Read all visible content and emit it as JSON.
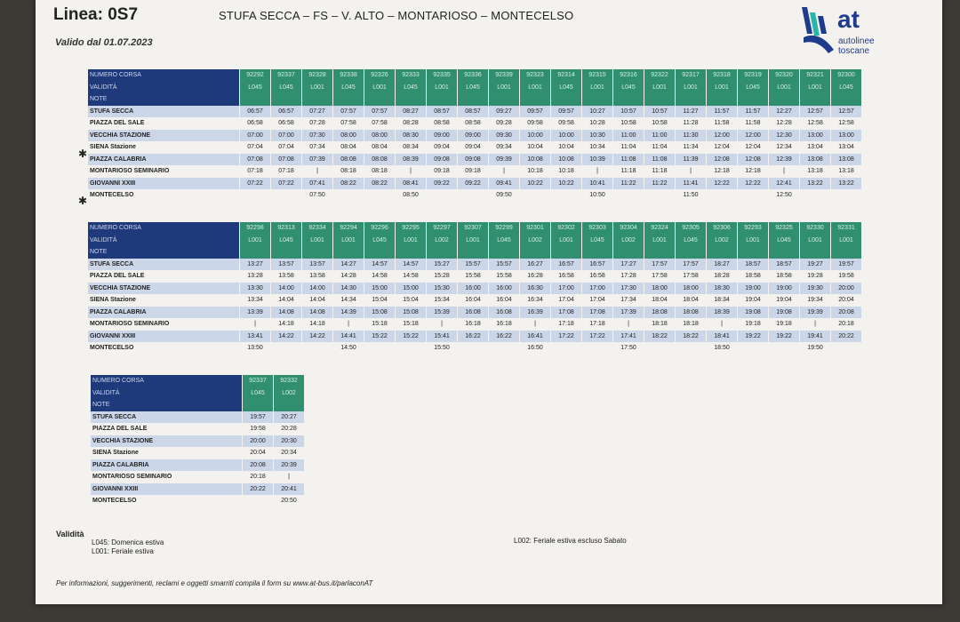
{
  "header": {
    "line_title": "Linea: 0S7",
    "route": "STUFA SECCA – FS – V. ALTO – MONTARIOSO – MONTECELSO",
    "valid_from": "Valido dal 01.07.2023"
  },
  "logo": {
    "brand": "at",
    "sub1": "autolinee",
    "sub2": "toscane"
  },
  "labels": {
    "corsa": "NUMERO CORSA",
    "validita": "VALIDITÀ",
    "note": "NOTE"
  },
  "stops": [
    "STUFA SECCA",
    "PIAZZA DEL SALE",
    "VECCHIA STAZIONE",
    "SIENA Stazione",
    "PIAZZA CALABRIA",
    "MONTARIOSO SEMINARIO",
    "GIOVANNI XXIII",
    "MONTECELSO"
  ],
  "table1": {
    "corse": [
      "92292",
      "92337",
      "92328",
      "92338",
      "92326",
      "92333",
      "92335",
      "92336",
      "92339",
      "92323",
      "92314",
      "92315",
      "92316",
      "92322",
      "92317",
      "92318",
      "92319",
      "92320",
      "92321",
      "92300"
    ],
    "validita": [
      "L045",
      "L045",
      "L001",
      "L045",
      "L001",
      "L045",
      "L001",
      "L045",
      "L001",
      "L001",
      "L045",
      "L001",
      "L045",
      "L001",
      "L001",
      "L001",
      "L045",
      "L001",
      "L001",
      "L045"
    ],
    "times": [
      [
        "06:57",
        "06:57",
        "07:27",
        "07:57",
        "07:57",
        "08:27",
        "08:57",
        "08:57",
        "09:27",
        "09:57",
        "09:57",
        "10:27",
        "10:57",
        "10:57",
        "11:27",
        "11:57",
        "11:57",
        "12:27",
        "12:57",
        "12:57"
      ],
      [
        "06:58",
        "06:58",
        "07:28",
        "07:58",
        "07:58",
        "08:28",
        "08:58",
        "08:58",
        "09:28",
        "09:58",
        "09:58",
        "10:28",
        "10:58",
        "10:58",
        "11:28",
        "11:58",
        "11:58",
        "12:28",
        "12:58",
        "12:58"
      ],
      [
        "07:00",
        "07:00",
        "07:30",
        "08:00",
        "08:00",
        "08:30",
        "09:00",
        "09:00",
        "09:30",
        "10:00",
        "10:00",
        "10:30",
        "11:00",
        "11:00",
        "11:30",
        "12:00",
        "12:00",
        "12:30",
        "13:00",
        "13:00"
      ],
      [
        "07:04",
        "07:04",
        "07:34",
        "08:04",
        "08:04",
        "08:34",
        "09:04",
        "09:04",
        "09:34",
        "10:04",
        "10:04",
        "10:34",
        "11:04",
        "11:04",
        "11:34",
        "12:04",
        "12:04",
        "12:34",
        "13:04",
        "13:04"
      ],
      [
        "07:08",
        "07:08",
        "07:39",
        "08:08",
        "08:08",
        "08:39",
        "09:08",
        "09:08",
        "09:39",
        "10:08",
        "10:08",
        "10:39",
        "11:08",
        "11:08",
        "11:39",
        "12:08",
        "12:08",
        "12:39",
        "13:08",
        "13:08"
      ],
      [
        "07:18",
        "07:18",
        "|",
        "08:18",
        "08:18",
        "|",
        "09:18",
        "09:18",
        "|",
        "10:18",
        "10:18",
        "|",
        "11:18",
        "11:18",
        "|",
        "12:18",
        "12:18",
        "|",
        "13:18",
        "13:18"
      ],
      [
        "07:22",
        "07:22",
        "07:41",
        "08:22",
        "08:22",
        "08:41",
        "09:22",
        "09:22",
        "09:41",
        "10:22",
        "10:22",
        "10:41",
        "11:22",
        "11:22",
        "11:41",
        "12:22",
        "12:22",
        "12:41",
        "13:22",
        "13:22"
      ],
      [
        "",
        "",
        "07:50",
        "",
        "",
        "08:50",
        "",
        "",
        "09:50",
        "",
        "",
        "10:50",
        "",
        "",
        "11:50",
        "",
        "",
        "12:50",
        "",
        ""
      ]
    ]
  },
  "table2": {
    "corse": [
      "92298",
      "92313",
      "92334",
      "92294",
      "92296",
      "92295",
      "92297",
      "92307",
      "92299",
      "92301",
      "92302",
      "92303",
      "92304",
      "92324",
      "92305",
      "92306",
      "92293",
      "92325",
      "92330",
      "92331"
    ],
    "validita": [
      "L001",
      "L045",
      "L001",
      "L001",
      "L045",
      "L001",
      "L002",
      "L001",
      "L045",
      "L002",
      "L001",
      "L045",
      "L002",
      "L001",
      "L045",
      "L002",
      "L001",
      "L045",
      "L001",
      "L001"
    ],
    "times": [
      [
        "13:27",
        "13:57",
        "13:57",
        "14:27",
        "14:57",
        "14:57",
        "15:27",
        "15:57",
        "15:57",
        "16:27",
        "16:57",
        "16:57",
        "17:27",
        "17:57",
        "17:57",
        "18:27",
        "18:57",
        "18:57",
        "19:27",
        "19:57"
      ],
      [
        "13:28",
        "13:58",
        "13:58",
        "14:28",
        "14:58",
        "14:58",
        "15:28",
        "15:58",
        "15:58",
        "16:28",
        "16:58",
        "16:58",
        "17:28",
        "17:58",
        "17:58",
        "18:28",
        "18:58",
        "18:58",
        "19:28",
        "19:58"
      ],
      [
        "13:30",
        "14:00",
        "14:00",
        "14:30",
        "15:00",
        "15:00",
        "15:30",
        "16:00",
        "16:00",
        "16:30",
        "17:00",
        "17:00",
        "17:30",
        "18:00",
        "18:00",
        "18:30",
        "19:00",
        "19:00",
        "19:30",
        "20:00"
      ],
      [
        "13:34",
        "14:04",
        "14:04",
        "14:34",
        "15:04",
        "15:04",
        "15:34",
        "16:04",
        "16:04",
        "16:34",
        "17:04",
        "17:04",
        "17:34",
        "18:04",
        "18:04",
        "18:34",
        "19:04",
        "19:04",
        "19:34",
        "20:04"
      ],
      [
        "13:39",
        "14:08",
        "14:08",
        "14:39",
        "15:08",
        "15:08",
        "15:39",
        "16:08",
        "16:08",
        "16:39",
        "17:08",
        "17:08",
        "17:39",
        "18:08",
        "18:08",
        "18:39",
        "19:08",
        "19:08",
        "19:39",
        "20:08"
      ],
      [
        "|",
        "14:18",
        "14:18",
        "|",
        "15:18",
        "15:18",
        "|",
        "16:18",
        "16:18",
        "|",
        "17:18",
        "17:18",
        "|",
        "18:18",
        "18:18",
        "|",
        "19:18",
        "19:18",
        "|",
        "20:18"
      ],
      [
        "13:41",
        "14:22",
        "14:22",
        "14:41",
        "15:22",
        "15:22",
        "15:41",
        "16:22",
        "16:22",
        "16:41",
        "17:22",
        "17:22",
        "17:41",
        "18:22",
        "18:22",
        "18:41",
        "19:22",
        "19:22",
        "19:41",
        "20:22"
      ],
      [
        "13:50",
        "",
        "",
        "14:50",
        "",
        "",
        "15:50",
        "",
        "",
        "16:50",
        "",
        "",
        "17:50",
        "",
        "",
        "18:50",
        "",
        "",
        "19:50",
        ""
      ]
    ]
  },
  "table3": {
    "corse": [
      "92337",
      "92332"
    ],
    "validita": [
      "L045",
      "L002"
    ],
    "times": [
      [
        "19:57",
        "20:27"
      ],
      [
        "19:58",
        "20:28"
      ],
      [
        "20:00",
        "20:30"
      ],
      [
        "20:04",
        "20:34"
      ],
      [
        "20:08",
        "20:39"
      ],
      [
        "20:18",
        "|"
      ],
      [
        "20:22",
        "20:41"
      ],
      [
        "",
        "20:50"
      ]
    ]
  },
  "legend": {
    "title": "Validità",
    "l045": "L045: Domenica estiva",
    "l001": "L001: Feriale estiva",
    "l002": "L002: Feriale estiva escluso Sabato"
  },
  "footer": "Per informazioni, suggerimenti, reclami e oggetti smarriti compila il form su www.at-bus.it/parlaconAT",
  "marks": {
    "star": "✱"
  }
}
